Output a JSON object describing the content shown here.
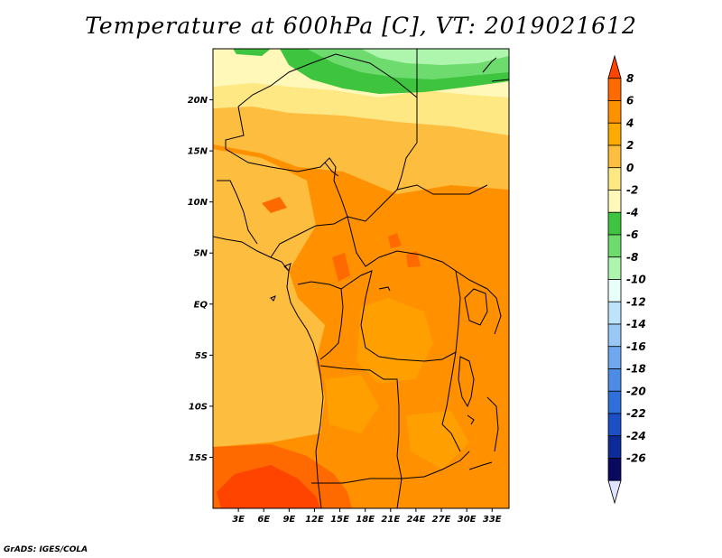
{
  "title": "Temperature at 600hPa [C], VT: 2019021612",
  "credit": "GrADS: IGES/COLA",
  "map": {
    "lon_range": [
      0,
      35
    ],
    "lat_range": [
      -20,
      25
    ],
    "x_ticks": [
      {
        "lon": 3,
        "label": "3E"
      },
      {
        "lon": 6,
        "label": "6E"
      },
      {
        "lon": 9,
        "label": "9E"
      },
      {
        "lon": 12,
        "label": "12E"
      },
      {
        "lon": 15,
        "label": "15E"
      },
      {
        "lon": 18,
        "label": "18E"
      },
      {
        "lon": 21,
        "label": "21E"
      },
      {
        "lon": 24,
        "label": "24E"
      },
      {
        "lon": 27,
        "label": "27E"
      },
      {
        "lon": 30,
        "label": "30E"
      },
      {
        "lon": 33,
        "label": "33E"
      }
    ],
    "y_ticks": [
      {
        "lat": 20,
        "label": "20N"
      },
      {
        "lat": 15,
        "label": "15N"
      },
      {
        "lat": 10,
        "label": "10N"
      },
      {
        "lat": 5,
        "label": "5N"
      },
      {
        "lat": 0,
        "label": "EQ"
      },
      {
        "lat": -5,
        "label": "5S"
      },
      {
        "lat": -10,
        "label": "10S"
      },
      {
        "lat": -15,
        "label": "15S"
      }
    ]
  },
  "colorbar": {
    "levels": [
      "8",
      "6",
      "4",
      "2",
      "0",
      "-2",
      "-4",
      "-6",
      "-8",
      "-10",
      "-12",
      "-14",
      "-16",
      "-18",
      "-20",
      "-22",
      "-24",
      "-26"
    ],
    "colors": [
      "#ff4400",
      "#ff6a00",
      "#ff9000",
      "#ffaa00",
      "#fdbd3f",
      "#fee884",
      "#fff8b8",
      "#3fc43f",
      "#6edb6e",
      "#aef5ae",
      "#e6fff8",
      "#bde4fb",
      "#99c8f5",
      "#6fa8ef",
      "#4d8ce6",
      "#2f6fd9",
      "#1c4ec6",
      "#0c2a98",
      "#08095f",
      "#dfe3ff"
    ]
  },
  "legend_colors": {
    "c8": "#ff4400",
    "c6": "#ff6a00",
    "c4": "#ff9000",
    "c2": "#ffaa00",
    "c0": "#fdbd3f",
    "cm2": "#fee884",
    "cm4": "#fff8b8",
    "cm6": "#3fc43f",
    "cm8": "#6edb6e",
    "cm10": "#aef5ae"
  }
}
